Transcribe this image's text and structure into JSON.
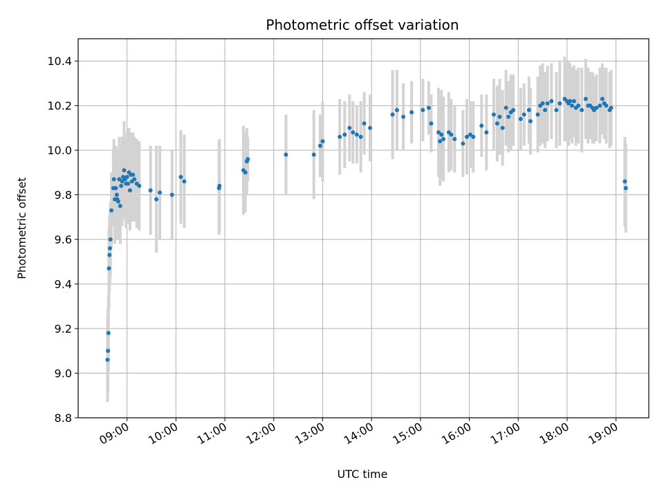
{
  "chart_data": {
    "type": "scatter",
    "title": "Photometric offset variation",
    "xlabel": "UTC time",
    "ylabel": "Photometric offset",
    "x_unit": "UTC hours",
    "xlim": [
      8.0,
      19.67
    ],
    "ylim": [
      8.8,
      10.5
    ],
    "grid": true,
    "x_ticks": [
      9,
      10,
      11,
      12,
      13,
      14,
      15,
      16,
      17,
      18,
      19
    ],
    "x_tick_labels": [
      "09:00",
      "10:00",
      "11:00",
      "12:00",
      "13:00",
      "14:00",
      "15:00",
      "16:00",
      "17:00",
      "18:00",
      "19:00"
    ],
    "y_ticks": [
      8.8,
      9.0,
      9.2,
      9.4,
      9.6,
      9.8,
      10.0,
      10.2,
      10.4
    ],
    "y_tick_labels": [
      "8.8",
      "9.0",
      "9.2",
      "9.4",
      "9.6",
      "9.8",
      "10.0",
      "10.2",
      "10.4"
    ],
    "colors": {
      "point": "#1f77b4",
      "errorbar": "#d3d3d3",
      "grid": "#b0b0b0"
    },
    "series": [
      {
        "marker": "point",
        "points": [
          [
            8.6,
            9.06,
            0.19
          ],
          [
            8.61,
            9.1,
            0.19
          ],
          [
            8.62,
            9.18,
            0.17
          ],
          [
            8.63,
            9.47,
            0.18
          ],
          [
            8.64,
            9.53,
            0.17
          ],
          [
            8.65,
            9.56,
            0.16
          ],
          [
            8.66,
            9.6,
            0.17
          ],
          [
            8.68,
            9.73,
            0.17
          ],
          [
            8.72,
            9.83,
            0.17
          ],
          [
            8.73,
            9.87,
            0.18
          ],
          [
            8.75,
            9.78,
            0.2
          ],
          [
            8.77,
            9.83,
            0.19
          ],
          [
            8.79,
            9.8,
            0.2
          ],
          [
            8.8,
            9.78,
            0.18
          ],
          [
            8.82,
            9.77,
            0.17
          ],
          [
            8.84,
            9.87,
            0.19
          ],
          [
            8.86,
            9.75,
            0.17
          ],
          [
            8.88,
            9.84,
            0.18
          ],
          [
            8.9,
            9.86,
            0.2
          ],
          [
            8.92,
            9.88,
            0.18
          ],
          [
            8.94,
            9.91,
            0.22
          ],
          [
            8.96,
            9.87,
            0.18
          ],
          [
            8.98,
            9.85,
            0.2
          ],
          [
            9.0,
            9.88,
            0.2
          ],
          [
            9.02,
            9.85,
            0.18
          ],
          [
            9.04,
            9.9,
            0.2
          ],
          [
            9.06,
            9.82,
            0.18
          ],
          [
            9.08,
            9.89,
            0.19
          ],
          [
            9.1,
            9.86,
            0.18
          ],
          [
            9.12,
            9.89,
            0.19
          ],
          [
            9.15,
            9.87,
            0.19
          ],
          [
            9.2,
            9.85,
            0.2
          ],
          [
            9.25,
            9.84,
            0.2
          ],
          [
            9.48,
            9.82,
            0.2
          ],
          [
            9.6,
            9.78,
            0.24
          ],
          [
            9.67,
            9.81,
            0.21
          ],
          [
            9.92,
            9.8,
            0.2
          ],
          [
            10.1,
            9.88,
            0.21
          ],
          [
            10.17,
            9.86,
            0.21
          ],
          [
            10.88,
            9.83,
            0.21
          ],
          [
            10.89,
            9.84,
            0.21
          ],
          [
            11.38,
            9.91,
            0.2
          ],
          [
            11.42,
            9.9,
            0.18
          ],
          [
            11.45,
            9.95,
            0.15
          ],
          [
            11.47,
            9.96,
            0.1
          ],
          [
            12.25,
            9.98,
            0.18
          ],
          [
            12.82,
            9.98,
            0.2
          ],
          [
            12.95,
            10.02,
            0.14
          ],
          [
            13.0,
            10.04,
            0.18
          ],
          [
            13.35,
            10.06,
            0.17
          ],
          [
            13.45,
            10.07,
            0.15
          ],
          [
            13.55,
            10.1,
            0.15
          ],
          [
            13.62,
            10.08,
            0.14
          ],
          [
            13.7,
            10.07,
            0.13
          ],
          [
            13.78,
            10.06,
            0.16
          ],
          [
            13.85,
            10.12,
            0.14
          ],
          [
            13.97,
            10.1,
            0.15
          ],
          [
            14.43,
            10.16,
            0.2
          ],
          [
            14.52,
            10.18,
            0.18
          ],
          [
            14.65,
            10.15,
            0.15
          ],
          [
            14.82,
            10.17,
            0.14
          ],
          [
            15.05,
            10.18,
            0.14
          ],
          [
            15.17,
            10.19,
            0.12
          ],
          [
            15.22,
            10.12,
            0.13
          ],
          [
            15.37,
            10.08,
            0.2
          ],
          [
            15.4,
            10.04,
            0.2
          ],
          [
            15.43,
            10.07,
            0.2
          ],
          [
            15.47,
            10.05,
            0.19
          ],
          [
            15.58,
            10.08,
            0.18
          ],
          [
            15.63,
            10.07,
            0.16
          ],
          [
            15.7,
            10.05,
            0.15
          ],
          [
            15.87,
            10.03,
            0.15
          ],
          [
            15.95,
            10.06,
            0.17
          ],
          [
            16.02,
            10.07,
            0.15
          ],
          [
            16.08,
            10.06,
            0.16
          ],
          [
            16.25,
            10.11,
            0.14
          ],
          [
            16.35,
            10.08,
            0.17
          ],
          [
            16.5,
            10.16,
            0.16
          ],
          [
            16.57,
            10.12,
            0.17
          ],
          [
            16.62,
            10.15,
            0.17
          ],
          [
            16.68,
            10.1,
            0.17
          ],
          [
            16.75,
            10.19,
            0.17
          ],
          [
            16.8,
            10.15,
            0.16
          ],
          [
            16.85,
            10.17,
            0.17
          ],
          [
            16.9,
            10.18,
            0.16
          ],
          [
            17.05,
            10.14,
            0.14
          ],
          [
            17.12,
            10.16,
            0.14
          ],
          [
            17.22,
            10.18,
            0.15
          ],
          [
            17.25,
            10.13,
            0.15
          ],
          [
            17.4,
            10.16,
            0.17
          ],
          [
            17.45,
            10.2,
            0.18
          ],
          [
            17.5,
            10.21,
            0.18
          ],
          [
            17.55,
            10.18,
            0.17
          ],
          [
            17.6,
            10.21,
            0.17
          ],
          [
            17.68,
            10.22,
            0.17
          ],
          [
            17.78,
            10.18,
            0.17
          ],
          [
            17.85,
            10.21,
            0.19
          ],
          [
            17.95,
            10.23,
            0.19
          ],
          [
            18.0,
            10.22,
            0.18
          ],
          [
            18.03,
            10.21,
            0.19
          ],
          [
            18.06,
            10.22,
            0.17
          ],
          [
            18.1,
            10.2,
            0.17
          ],
          [
            18.14,
            10.22,
            0.16
          ],
          [
            18.18,
            10.19,
            0.17
          ],
          [
            18.23,
            10.2,
            0.17
          ],
          [
            18.3,
            10.18,
            0.19
          ],
          [
            18.38,
            10.23,
            0.18
          ],
          [
            18.43,
            10.2,
            0.17
          ],
          [
            18.47,
            10.2,
            0.15
          ],
          [
            18.52,
            10.19,
            0.16
          ],
          [
            18.55,
            10.18,
            0.15
          ],
          [
            18.6,
            10.19,
            0.15
          ],
          [
            18.67,
            10.2,
            0.17
          ],
          [
            18.72,
            10.23,
            0.16
          ],
          [
            18.76,
            10.21,
            0.16
          ],
          [
            18.8,
            10.2,
            0.17
          ],
          [
            18.87,
            10.18,
            0.17
          ],
          [
            18.9,
            10.19,
            0.17
          ],
          [
            19.18,
            9.86,
            0.2
          ],
          [
            19.2,
            9.83,
            0.2
          ]
        ]
      }
    ]
  }
}
